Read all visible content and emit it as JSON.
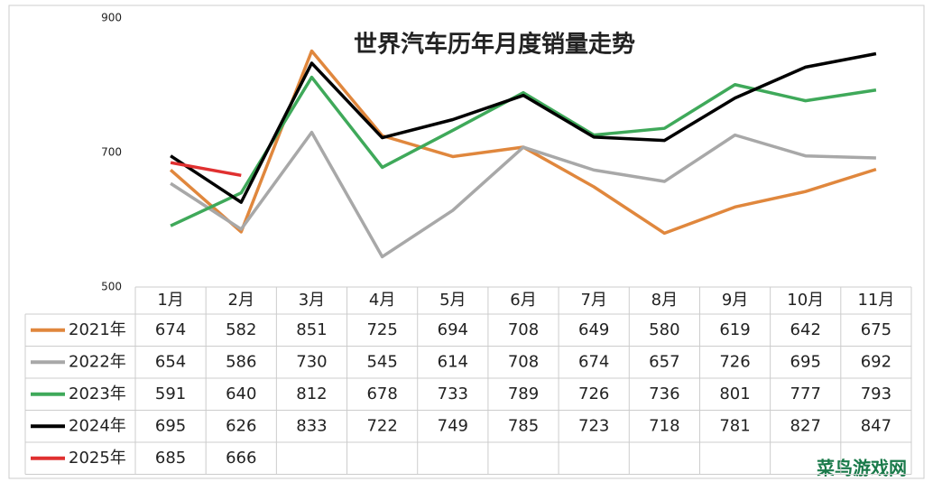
{
  "chart_data": {
    "type": "line",
    "title": "世界汽车历年月度销量走势",
    "categories": [
      "1月",
      "2月",
      "3月",
      "4月",
      "5月",
      "6月",
      "7月",
      "8月",
      "9月",
      "10月",
      "11月"
    ],
    "series": [
      {
        "name": "2021年",
        "color": "#e0873d",
        "values": [
          674,
          582,
          851,
          725,
          694,
          708,
          649,
          580,
          619,
          642,
          675
        ]
      },
      {
        "name": "2022年",
        "color": "#a8a8a8",
        "values": [
          654,
          586,
          730,
          545,
          614,
          708,
          674,
          657,
          726,
          695,
          692
        ]
      },
      {
        "name": "2023年",
        "color": "#3fa95a",
        "values": [
          591,
          640,
          812,
          678,
          733,
          789,
          726,
          736,
          801,
          777,
          793
        ]
      },
      {
        "name": "2024年",
        "color": "#000000",
        "values": [
          695,
          626,
          833,
          722,
          749,
          785,
          723,
          718,
          781,
          827,
          847
        ]
      },
      {
        "name": "2025年",
        "color": "#e03030",
        "values": [
          685,
          666,
          null,
          null,
          null,
          null,
          null,
          null,
          null,
          null,
          null
        ]
      }
    ],
    "ylim": [
      500,
      900
    ],
    "yticks": [
      500,
      700,
      900
    ],
    "watermark": "菜鸟游戏网"
  }
}
